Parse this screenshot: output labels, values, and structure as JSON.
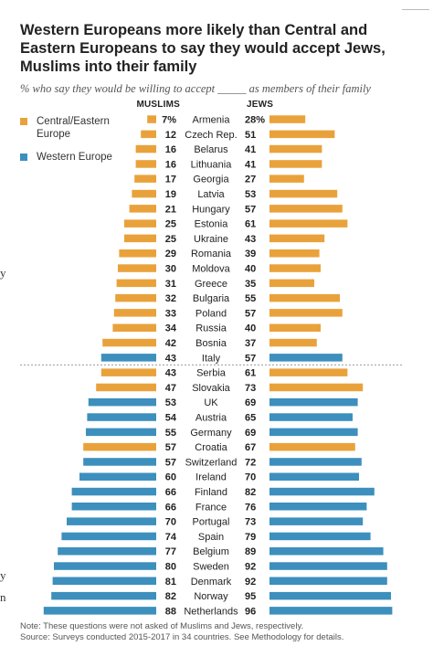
{
  "title": "Western Europeans more likely than Central and Eastern Europeans to say they would accept Jews, Muslims into their family",
  "subtitle": "% who say they would be willing to accept _____ as members of their family",
  "colors": {
    "central_eastern": "#e9a23b",
    "western": "#3d8fbd",
    "divider": "#999999"
  },
  "legend": [
    {
      "label": "Central/Eastern Europe",
      "group": "central_eastern"
    },
    {
      "label": "Western Europe",
      "group": "western"
    }
  ],
  "notes": [
    "Note: These questions were not asked of Muslims and Jews, respectively.",
    "Source: Surveys conducted 2015-2017 in 34 countries. See Methodology for details."
  ],
  "left_marks": [
    "y",
    "y",
    "n"
  ],
  "chart_data": {
    "type": "bar",
    "series_labels": {
      "left": "MUSLIMS",
      "right": "JEWS"
    },
    "rows": [
      {
        "country": "Armenia",
        "muslims_label": "7%",
        "muslims": 7,
        "jews_label": "28%",
        "jews": 28,
        "group": "central_eastern"
      },
      {
        "country": "Czech Rep.",
        "muslims_label": "12",
        "muslims": 12,
        "jews_label": "51",
        "jews": 51,
        "group": "central_eastern"
      },
      {
        "country": "Belarus",
        "muslims_label": "16",
        "muslims": 16,
        "jews_label": "41",
        "jews": 41,
        "group": "central_eastern"
      },
      {
        "country": "Lithuania",
        "muslims_label": "16",
        "muslims": 16,
        "jews_label": "41",
        "jews": 41,
        "group": "central_eastern"
      },
      {
        "country": "Georgia",
        "muslims_label": "17",
        "muslims": 17,
        "jews_label": "27",
        "jews": 27,
        "group": "central_eastern"
      },
      {
        "country": "Latvia",
        "muslims_label": "19",
        "muslims": 19,
        "jews_label": "53",
        "jews": 53,
        "group": "central_eastern"
      },
      {
        "country": "Hungary",
        "muslims_label": "21",
        "muslims": 21,
        "jews_label": "57",
        "jews": 57,
        "group": "central_eastern"
      },
      {
        "country": "Estonia",
        "muslims_label": "25",
        "muslims": 25,
        "jews_label": "61",
        "jews": 61,
        "group": "central_eastern"
      },
      {
        "country": "Ukraine",
        "muslims_label": "25",
        "muslims": 25,
        "jews_label": "43",
        "jews": 43,
        "group": "central_eastern"
      },
      {
        "country": "Romania",
        "muslims_label": "29",
        "muslims": 29,
        "jews_label": "39",
        "jews": 39,
        "group": "central_eastern"
      },
      {
        "country": "Moldova",
        "muslims_label": "30",
        "muslims": 30,
        "jews_label": "40",
        "jews": 40,
        "group": "central_eastern"
      },
      {
        "country": "Greece",
        "muslims_label": "31",
        "muslims": 31,
        "jews_label": "35",
        "jews": 35,
        "group": "central_eastern"
      },
      {
        "country": "Bulgaria",
        "muslims_label": "32",
        "muslims": 32,
        "jews_label": "55",
        "jews": 55,
        "group": "central_eastern"
      },
      {
        "country": "Poland",
        "muslims_label": "33",
        "muslims": 33,
        "jews_label": "57",
        "jews": 57,
        "group": "central_eastern"
      },
      {
        "country": "Russia",
        "muslims_label": "34",
        "muslims": 34,
        "jews_label": "40",
        "jews": 40,
        "group": "central_eastern"
      },
      {
        "country": "Bosnia",
        "muslims_label": "42",
        "muslims": 42,
        "jews_label": "37",
        "jews": 37,
        "group": "central_eastern"
      },
      {
        "country": "Italy",
        "muslims_label": "43",
        "muslims": 43,
        "jews_label": "57",
        "jews": 57,
        "group": "western"
      },
      {
        "country": "Serbia",
        "muslims_label": "43",
        "muslims": 43,
        "jews_label": "61",
        "jews": 61,
        "group": "central_eastern"
      },
      {
        "country": "Slovakia",
        "muslims_label": "47",
        "muslims": 47,
        "jews_label": "73",
        "jews": 73,
        "group": "central_eastern"
      },
      {
        "country": "UK",
        "muslims_label": "53",
        "muslims": 53,
        "jews_label": "69",
        "jews": 69,
        "group": "western"
      },
      {
        "country": "Austria",
        "muslims_label": "54",
        "muslims": 54,
        "jews_label": "65",
        "jews": 65,
        "group": "western"
      },
      {
        "country": "Germany",
        "muslims_label": "55",
        "muslims": 55,
        "jews_label": "69",
        "jews": 69,
        "group": "western"
      },
      {
        "country": "Croatia",
        "muslims_label": "57",
        "muslims": 57,
        "jews_label": "67",
        "jews": 67,
        "group": "central_eastern"
      },
      {
        "country": "Switzerland",
        "muslims_label": "57",
        "muslims": 57,
        "jews_label": "72",
        "jews": 72,
        "group": "western"
      },
      {
        "country": "Ireland",
        "muslims_label": "60",
        "muslims": 60,
        "jews_label": "70",
        "jews": 70,
        "group": "western"
      },
      {
        "country": "Finland",
        "muslims_label": "66",
        "muslims": 66,
        "jews_label": "82",
        "jews": 82,
        "group": "western"
      },
      {
        "country": "France",
        "muslims_label": "66",
        "muslims": 66,
        "jews_label": "76",
        "jews": 76,
        "group": "western"
      },
      {
        "country": "Portugal",
        "muslims_label": "70",
        "muslims": 70,
        "jews_label": "73",
        "jews": 73,
        "group": "western"
      },
      {
        "country": "Spain",
        "muslims_label": "74",
        "muslims": 74,
        "jews_label": "79",
        "jews": 79,
        "group": "western"
      },
      {
        "country": "Belgium",
        "muslims_label": "77",
        "muslims": 77,
        "jews_label": "89",
        "jews": 89,
        "group": "western"
      },
      {
        "country": "Sweden",
        "muslims_label": "80",
        "muslims": 80,
        "jews_label": "92",
        "jews": 92,
        "group": "western"
      },
      {
        "country": "Denmark",
        "muslims_label": "81",
        "muslims": 81,
        "jews_label": "92",
        "jews": 92,
        "group": "western"
      },
      {
        "country": "Norway",
        "muslims_label": "82",
        "muslims": 82,
        "jews_label": "95",
        "jews": 95,
        "group": "western"
      },
      {
        "country": "Netherlands",
        "muslims_label": "88",
        "muslims": 88,
        "jews_label": "96",
        "jews": 96,
        "group": "western"
      }
    ]
  }
}
